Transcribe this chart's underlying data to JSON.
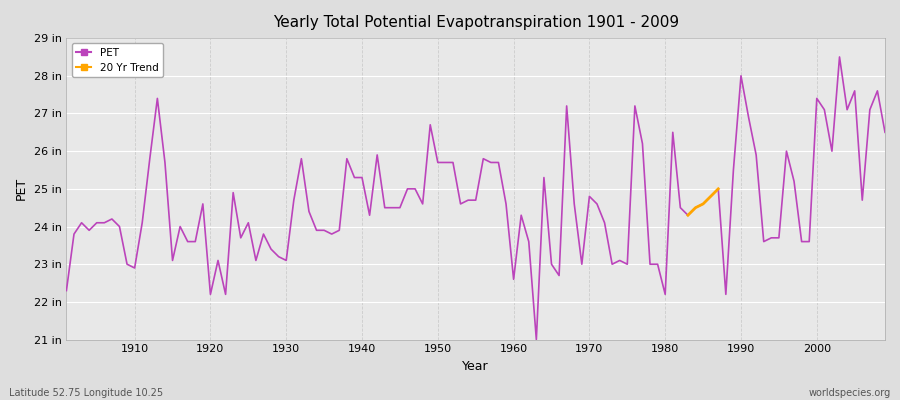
{
  "title": "Yearly Total Potential Evapotranspiration 1901 - 2009",
  "xlabel": "Year",
  "ylabel": "PET",
  "footnote_left": "Latitude 52.75 Longitude 10.25",
  "footnote_right": "worldspecies.org",
  "pet_color": "#BB44BB",
  "trend_color": "#FFA500",
  "fig_bg_color": "#DEDEDE",
  "plot_bg_color": "#E8E8E8",
  "grid_color_h": "#FFFFFF",
  "grid_color_v": "#CCCCCC",
  "ylim_min": 21,
  "ylim_max": 29,
  "ytick_labels": [
    "21 in",
    "22 in",
    "23 in",
    "24 in",
    "25 in",
    "26 in",
    "27 in",
    "28 in",
    "29 in"
  ],
  "ytick_values": [
    21,
    22,
    23,
    24,
    25,
    26,
    27,
    28,
    29
  ],
  "years": [
    1901,
    1902,
    1903,
    1904,
    1905,
    1906,
    1907,
    1908,
    1909,
    1910,
    1911,
    1912,
    1913,
    1914,
    1915,
    1916,
    1917,
    1918,
    1919,
    1920,
    1921,
    1922,
    1923,
    1924,
    1925,
    1926,
    1927,
    1928,
    1929,
    1930,
    1931,
    1932,
    1933,
    1934,
    1935,
    1936,
    1937,
    1938,
    1939,
    1940,
    1941,
    1942,
    1943,
    1944,
    1945,
    1946,
    1947,
    1948,
    1949,
    1950,
    1951,
    1952,
    1953,
    1954,
    1955,
    1956,
    1957,
    1958,
    1959,
    1960,
    1961,
    1962,
    1963,
    1964,
    1965,
    1966,
    1967,
    1968,
    1969,
    1970,
    1971,
    1972,
    1973,
    1974,
    1975,
    1976,
    1977,
    1978,
    1979,
    1980,
    1981,
    1982,
    1983,
    1984,
    1985,
    1986,
    1987,
    1988,
    1989,
    1990,
    1991,
    1992,
    1993,
    1994,
    1995,
    1996,
    1997,
    1998,
    1999,
    2000,
    2001,
    2002,
    2003,
    2004,
    2005,
    2006,
    2007,
    2008,
    2009
  ],
  "pet_values": [
    22.3,
    23.8,
    24.1,
    23.9,
    24.1,
    24.1,
    24.2,
    24.0,
    23.0,
    22.9,
    24.1,
    25.8,
    27.4,
    25.7,
    23.1,
    24.0,
    23.6,
    23.6,
    24.6,
    22.2,
    23.1,
    22.2,
    24.9,
    23.7,
    24.1,
    23.1,
    23.8,
    23.4,
    23.2,
    23.1,
    24.7,
    25.8,
    24.4,
    23.9,
    23.9,
    23.8,
    23.9,
    25.8,
    25.3,
    25.3,
    24.3,
    25.9,
    24.5,
    24.5,
    24.5,
    25.0,
    25.0,
    24.6,
    26.7,
    25.7,
    25.7,
    25.7,
    24.6,
    24.7,
    24.7,
    25.8,
    25.7,
    25.7,
    24.6,
    22.6,
    24.3,
    23.6,
    21.0,
    25.3,
    23.0,
    22.7,
    27.2,
    24.6,
    23.0,
    24.8,
    24.6,
    24.1,
    23.0,
    23.1,
    23.0,
    27.2,
    26.2,
    23.0,
    23.0,
    22.2,
    26.5,
    24.5,
    24.3,
    24.5,
    24.6,
    24.8,
    25.0,
    22.2,
    25.5,
    28.0,
    26.9,
    25.9,
    23.6,
    23.7,
    23.7,
    26.0,
    25.2,
    23.6,
    23.6,
    27.4,
    27.1,
    26.0,
    28.5,
    27.1,
    27.6,
    24.7,
    27.1,
    27.6,
    26.5
  ],
  "trend_years": [
    1983,
    1984,
    1985,
    1986,
    1987
  ],
  "trend_values": [
    24.3,
    24.5,
    24.6,
    24.8,
    25.0
  ],
  "xticks": [
    1910,
    1920,
    1930,
    1940,
    1950,
    1960,
    1970,
    1980,
    1990,
    2000
  ]
}
